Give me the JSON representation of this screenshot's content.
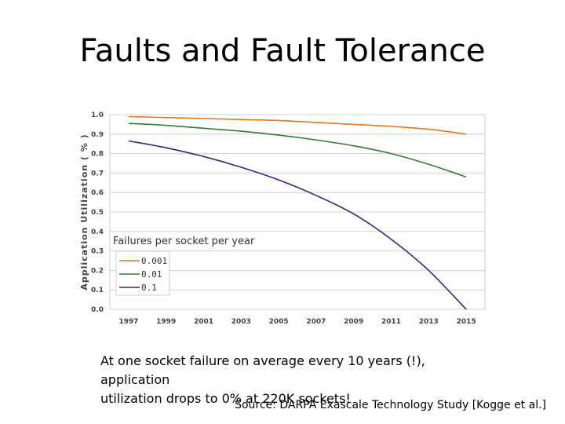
{
  "slide": {
    "title": "Faults and Fault Tolerance",
    "caption_line1": "At one socket failure on average every 10 years (!), application",
    "caption_line2": "utilization drops to 0% at 220K sockets!",
    "source": "Source: DARPA Exascale Technology Study [Kogge et al.]"
  },
  "chart_data": {
    "type": "line",
    "title": "",
    "xlabel": "",
    "ylabel": "Application Utilization ( % )",
    "xlim": [
      1996,
      2016
    ],
    "ylim": [
      0,
      1
    ],
    "x_ticks": [
      "1997",
      "1999",
      "2001",
      "2003",
      "2005",
      "2007",
      "2009",
      "2011",
      "2013",
      "2015"
    ],
    "y_ticks": [
      "0.0",
      "0.1",
      "0.2",
      "0.3",
      "0.4",
      "0.5",
      "0.6",
      "0.7",
      "0.8",
      "0.9",
      "1.0"
    ],
    "grid": true,
    "legend_title": "Failures per socket per year",
    "legend_position": "lower-left",
    "x": [
      1997,
      1999,
      2001,
      2003,
      2005,
      2007,
      2009,
      2011,
      2013,
      2015
    ],
    "series": [
      {
        "name": "0.001",
        "color": "#e87722",
        "values": [
          0.99,
          0.985,
          0.98,
          0.975,
          0.97,
          0.96,
          0.95,
          0.94,
          0.925,
          0.9
        ]
      },
      {
        "name": "0.01",
        "color": "#2e7d32",
        "values": [
          0.955,
          0.945,
          0.93,
          0.915,
          0.895,
          0.87,
          0.84,
          0.8,
          0.745,
          0.68
        ]
      },
      {
        "name": "0.1",
        "color": "#2a2a8a",
        "values": [
          0.865,
          0.83,
          0.785,
          0.73,
          0.665,
          0.585,
          0.49,
          0.36,
          0.2,
          0.0
        ]
      }
    ]
  }
}
